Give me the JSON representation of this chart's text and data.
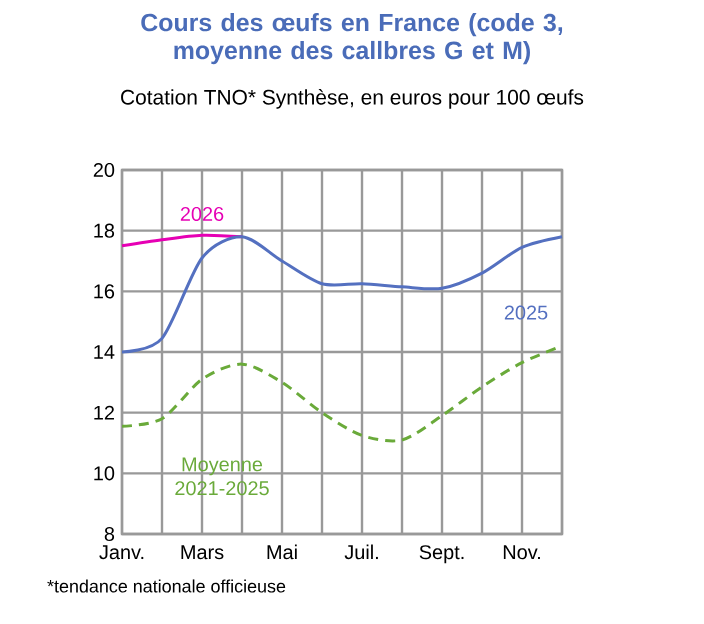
{
  "chart_data": {
    "type": "line",
    "title": "Cours des œufs en France (code 3,\nmoyenne des callbres G et M)",
    "subtitle": "Cotation TNO* Synthèse, en euros pour 100 œufs",
    "categories": [
      "Janv.",
      null,
      "Mars",
      null,
      "Mai",
      null,
      "Juil.",
      null,
      "Sept.",
      null,
      "Nov.",
      null
    ],
    "series": [
      {
        "name": "2026",
        "color": "#e600b4",
        "values": [
          17.5,
          17.7,
          17.85,
          17.8,
          null,
          null,
          null,
          null,
          null,
          null,
          null,
          null
        ]
      },
      {
        "name": "2025",
        "color": "#5470c0",
        "values": [
          14.0,
          14.45,
          17.1,
          17.8,
          17.0,
          16.25,
          16.25,
          16.15,
          16.1,
          16.6,
          17.45,
          17.8
        ]
      },
      {
        "name": "Moyenne\n2021-2025",
        "color": "#6aaa3a",
        "line_style": "dashed",
        "values": [
          11.55,
          11.8,
          13.1,
          13.6,
          13.0,
          12.0,
          11.25,
          11.1,
          11.9,
          12.85,
          13.65,
          14.2
        ]
      }
    ],
    "ylim": [
      8,
      20
    ],
    "yticks": [
      8,
      10,
      12,
      14,
      16,
      18,
      20
    ],
    "grid": true,
    "legend": false,
    "marker": "none",
    "line_style": "solid",
    "annotations": [
      "*tendance nationale officieuse"
    ]
  }
}
